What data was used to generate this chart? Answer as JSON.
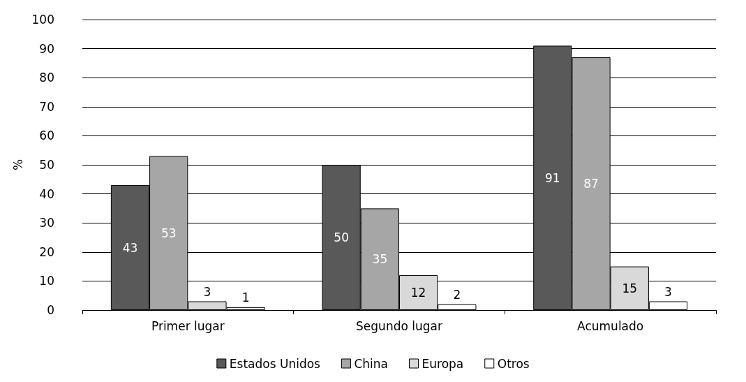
{
  "chart_data": {
    "type": "bar",
    "ylabel": "%",
    "categories": [
      "Primer lugar",
      "Segundo lugar",
      "Acumulado"
    ],
    "series": [
      {
        "name": "Estados Unidos",
        "color": "#595959",
        "values": [
          43,
          50,
          91
        ]
      },
      {
        "name": "China",
        "color": "#a6a6a6",
        "values": [
          53,
          35,
          87
        ]
      },
      {
        "name": "Europa",
        "color": "#d9d9d9",
        "values": [
          3,
          12,
          15
        ]
      },
      {
        "name": "Otros",
        "color": "#ffffff",
        "values": [
          1,
          2,
          3
        ]
      }
    ],
    "ylim": [
      0,
      100
    ],
    "yticks": [
      0,
      10,
      20,
      30,
      40,
      50,
      60,
      70,
      80,
      90,
      100
    ],
    "grid": "y",
    "legend": "bottom",
    "data_labels": true
  }
}
